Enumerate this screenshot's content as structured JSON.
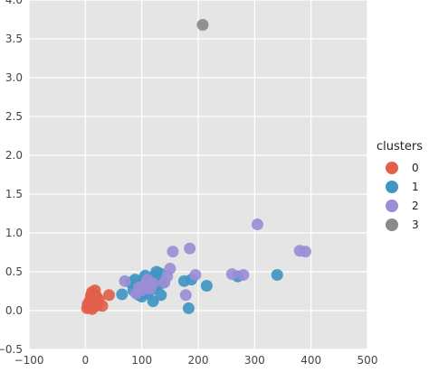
{
  "chart_data": {
    "type": "scatter",
    "title": "",
    "xlabel": "",
    "ylabel": "",
    "xlim": [
      -100,
      500
    ],
    "ylim": [
      -0.5,
      4.0
    ],
    "xticks": [
      -100,
      0,
      100,
      200,
      300,
      400,
      500
    ],
    "yticks": [
      -0.5,
      0.0,
      0.5,
      1.0,
      1.5,
      2.0,
      2.5,
      3.0,
      3.5,
      4.0
    ],
    "xtick_labels": [
      "−100",
      "0",
      "100",
      "200",
      "300",
      "400",
      "500"
    ],
    "ytick_labels": [
      "−0.5",
      "0.0",
      "0.5",
      "1.0",
      "1.5",
      "2.0",
      "2.5",
      "3.0",
      "3.5",
      "4.0"
    ],
    "grid": true,
    "background_color": "#e5e5e5",
    "grid_color": "#ffffff",
    "legend": {
      "title": "clusters",
      "position": "outside-right"
    },
    "series": [
      {
        "name": "0",
        "color": "#e2614b",
        "points": [
          [
            3,
            0.03
          ],
          [
            5,
            0.06
          ],
          [
            6,
            0.1
          ],
          [
            7,
            0.04
          ],
          [
            8,
            0.12
          ],
          [
            9,
            0.15
          ],
          [
            10,
            0.08
          ],
          [
            10,
            0.2
          ],
          [
            11,
            0.17
          ],
          [
            12,
            0.24
          ],
          [
            13,
            0.1
          ],
          [
            14,
            0.05
          ],
          [
            15,
            0.22
          ],
          [
            16,
            0.14
          ],
          [
            17,
            0.26
          ],
          [
            18,
            0.11
          ],
          [
            19,
            0.06
          ],
          [
            20,
            0.18
          ],
          [
            22,
            0.09
          ],
          [
            24,
            0.14
          ],
          [
            30,
            0.06
          ],
          [
            42,
            0.2
          ],
          [
            4,
            0.08
          ],
          [
            12,
            0.02
          ]
        ]
      },
      {
        "name": "1",
        "color": "#4096c2",
        "points": [
          [
            65,
            0.21
          ],
          [
            80,
            0.36
          ],
          [
            85,
            0.26
          ],
          [
            88,
            0.4
          ],
          [
            92,
            0.3
          ],
          [
            95,
            0.2
          ],
          [
            98,
            0.33
          ],
          [
            100,
            0.18
          ],
          [
            102,
            0.4
          ],
          [
            104,
            0.27
          ],
          [
            106,
            0.45
          ],
          [
            108,
            0.35
          ],
          [
            110,
            0.22
          ],
          [
            112,
            0.3
          ],
          [
            114,
            0.26
          ],
          [
            116,
            0.4
          ],
          [
            118,
            0.33
          ],
          [
            120,
            0.28
          ],
          [
            120,
            0.12
          ],
          [
            122,
            0.45
          ],
          [
            124,
            0.38
          ],
          [
            126,
            0.5
          ],
          [
            128,
            0.42
          ],
          [
            130,
            0.33
          ],
          [
            132,
            0.48
          ],
          [
            134,
            0.2
          ],
          [
            136,
            0.36
          ],
          [
            175,
            0.38
          ],
          [
            183,
            0.03
          ],
          [
            188,
            0.4
          ],
          [
            215,
            0.32
          ],
          [
            270,
            0.44
          ],
          [
            340,
            0.46
          ]
        ]
      },
      {
        "name": "2",
        "color": "#9b8ed6",
        "points": [
          [
            70,
            0.38
          ],
          [
            90,
            0.22
          ],
          [
            95,
            0.3
          ],
          [
            100,
            0.26
          ],
          [
            105,
            0.33
          ],
          [
            110,
            0.4
          ],
          [
            115,
            0.28
          ],
          [
            120,
            0.35
          ],
          [
            140,
            0.36
          ],
          [
            145,
            0.44
          ],
          [
            150,
            0.54
          ],
          [
            155,
            0.76
          ],
          [
            178,
            0.2
          ],
          [
            185,
            0.8
          ],
          [
            195,
            0.46
          ],
          [
            260,
            0.47
          ],
          [
            280,
            0.46
          ],
          [
            305,
            1.11
          ],
          [
            380,
            0.77
          ],
          [
            390,
            0.76
          ]
        ]
      },
      {
        "name": "3",
        "color": "#8a8a8a",
        "points": [
          [
            208,
            3.68
          ]
        ]
      }
    ]
  }
}
